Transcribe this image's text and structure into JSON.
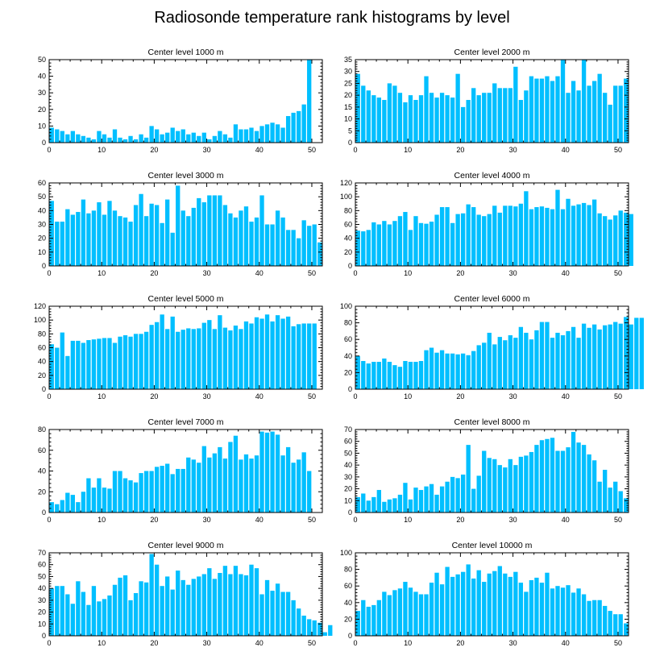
{
  "chart_data": {
    "title": "Radiosonde temperature rank histograms by level",
    "type": "bar",
    "panels": [
      {
        "title": "Center level 1000 m",
        "ylim": [
          0,
          50
        ],
        "yticks": [
          0,
          10,
          20,
          30,
          40,
          50
        ],
        "xticks": [
          0,
          10,
          20,
          30,
          40,
          50
        ],
        "values": [
          9,
          8,
          7,
          5,
          7,
          5,
          4,
          3,
          2,
          7,
          5,
          3,
          8,
          3,
          2,
          4,
          2,
          5,
          3,
          10,
          8,
          5,
          6,
          9,
          7,
          8,
          5,
          6,
          4,
          6,
          2,
          4,
          7,
          5,
          3,
          11,
          8,
          8,
          9,
          7,
          10,
          11,
          12,
          11,
          9,
          16,
          18,
          19,
          23,
          50
        ]
      },
      {
        "title": "Center level 2000 m",
        "ylim": [
          0,
          35
        ],
        "yticks": [
          0,
          5,
          10,
          15,
          20,
          25,
          30,
          35
        ],
        "xticks": [
          0,
          10,
          20,
          30,
          40,
          50
        ],
        "values": [
          29,
          24,
          22,
          20,
          19,
          18,
          25,
          24,
          21,
          17,
          20,
          18,
          20,
          28,
          21,
          19,
          21,
          20,
          19,
          29,
          15,
          18,
          23,
          20,
          21,
          21,
          25,
          23,
          23,
          23,
          32,
          18,
          22,
          28,
          27,
          27,
          28,
          26,
          28,
          35,
          21,
          26,
          22,
          35,
          24,
          26,
          29,
          21,
          16,
          24,
          24,
          27
        ]
      },
      {
        "title": "Center level 3000 m",
        "ylim": [
          0,
          60
        ],
        "yticks": [
          0,
          10,
          20,
          30,
          40,
          50,
          60
        ],
        "xticks": [
          0,
          10,
          20,
          30,
          40,
          50
        ],
        "values": [
          47,
          32,
          32,
          41,
          37,
          39,
          48,
          38,
          40,
          46,
          37,
          47,
          40,
          36,
          35,
          32,
          44,
          52,
          36,
          45,
          44,
          31,
          48,
          24,
          58,
          40,
          36,
          42,
          49,
          46,
          51,
          51,
          51,
          44,
          38,
          35,
          40,
          43,
          32,
          35,
          51,
          30,
          30,
          40,
          35,
          26,
          26,
          20,
          33,
          29,
          30,
          17
        ]
      },
      {
        "title": "Center level 4000 m",
        "ylim": [
          0,
          120
        ],
        "yticks": [
          0,
          20,
          40,
          60,
          80,
          100,
          120
        ],
        "xticks": [
          0,
          10,
          20,
          30,
          40,
          50
        ],
        "values": [
          51,
          50,
          52,
          63,
          60,
          65,
          60,
          65,
          72,
          78,
          52,
          72,
          62,
          61,
          64,
          74,
          85,
          85,
          62,
          75,
          76,
          89,
          85,
          74,
          72,
          75,
          87,
          77,
          87,
          87,
          86,
          90,
          108,
          82,
          85,
          86,
          84,
          82,
          110,
          82,
          97,
          87,
          89,
          91,
          88,
          96,
          76,
          72,
          67,
          73,
          80,
          77,
          75
        ]
      },
      {
        "title": "Center level 5000 m",
        "ylim": [
          0,
          120
        ],
        "yticks": [
          0,
          20,
          40,
          60,
          80,
          100,
          120
        ],
        "xticks": [
          0,
          10,
          20,
          30,
          40,
          50
        ],
        "values": [
          65,
          60,
          82,
          48,
          70,
          70,
          67,
          71,
          72,
          73,
          74,
          74,
          67,
          76,
          78,
          76,
          80,
          80,
          83,
          93,
          97,
          108,
          87,
          105,
          83,
          86,
          88,
          87,
          88,
          96,
          100,
          87,
          107,
          89,
          85,
          92,
          87,
          98,
          95,
          104,
          102,
          108,
          98,
          107,
          102,
          105,
          91,
          94,
          95,
          95,
          95
        ]
      },
      {
        "title": "Center level 6000 m",
        "ylim": [
          0,
          100
        ],
        "yticks": [
          0,
          20,
          40,
          60,
          80,
          100
        ],
        "xticks": [
          0,
          10,
          20,
          30,
          40,
          50
        ],
        "values": [
          40,
          34,
          31,
          33,
          33,
          37,
          33,
          29,
          27,
          34,
          33,
          33,
          34,
          47,
          50,
          44,
          47,
          43,
          43,
          42,
          43,
          41,
          46,
          53,
          56,
          68,
          54,
          63,
          59,
          65,
          62,
          75,
          68,
          60,
          71,
          81,
          81,
          62,
          68,
          65,
          70,
          75,
          62,
          79,
          74,
          78,
          72,
          77,
          78,
          81,
          79,
          87,
          78,
          86,
          86
        ]
      },
      {
        "title": "Center level 7000 m",
        "ylim": [
          0,
          80
        ],
        "yticks": [
          0,
          20,
          40,
          60,
          80
        ],
        "xticks": [
          0,
          10,
          20,
          30,
          40,
          50
        ],
        "values": [
          10,
          8,
          12,
          19,
          17,
          10,
          20,
          33,
          24,
          33,
          24,
          23,
          40,
          40,
          33,
          31,
          29,
          38,
          40,
          40,
          44,
          45,
          47,
          37,
          42,
          42,
          53,
          51,
          48,
          64,
          53,
          57,
          63,
          52,
          68,
          74,
          51,
          56,
          52,
          55,
          78,
          77,
          78,
          75,
          55,
          63,
          48,
          51,
          58,
          40
        ]
      },
      {
        "title": "Center level 8000 m",
        "ylim": [
          0,
          70
        ],
        "yticks": [
          0,
          10,
          20,
          30,
          40,
          50,
          60,
          70
        ],
        "xticks": [
          0,
          10,
          20,
          30,
          40,
          50
        ],
        "values": [
          13,
          16,
          10,
          13,
          19,
          9,
          11,
          12,
          15,
          25,
          11,
          21,
          19,
          22,
          24,
          15,
          22,
          26,
          30,
          29,
          32,
          57,
          20,
          31,
          52,
          46,
          45,
          40,
          38,
          45,
          40,
          47,
          48,
          51,
          57,
          61,
          62,
          63,
          52,
          52,
          55,
          68,
          59,
          57,
          49,
          44,
          26,
          36,
          21,
          26,
          18,
          12
        ]
      },
      {
        "title": "Center level 9000 m",
        "ylim": [
          0,
          70
        ],
        "yticks": [
          0,
          10,
          20,
          30,
          40,
          50,
          60,
          70
        ],
        "xticks": [
          0,
          10,
          20,
          30,
          40,
          50
        ],
        "values": [
          40,
          42,
          42,
          35,
          27,
          46,
          37,
          26,
          42,
          29,
          31,
          34,
          43,
          49,
          51,
          30,
          36,
          46,
          45,
          69,
          60,
          42,
          50,
          39,
          55,
          47,
          43,
          48,
          50,
          52,
          57,
          48,
          53,
          59,
          52,
          59,
          52,
          51,
          60,
          57,
          35,
          47,
          38,
          44,
          37,
          37,
          30,
          23,
          17,
          14,
          13,
          11,
          3,
          9
        ]
      },
      {
        "title": "Center level 10000 m",
        "ylim": [
          0,
          100
        ],
        "yticks": [
          0,
          20,
          40,
          60,
          80,
          100
        ],
        "xticks": [
          0,
          10,
          20,
          30,
          40,
          50
        ],
        "values": [
          30,
          43,
          35,
          37,
          43,
          53,
          49,
          55,
          57,
          65,
          58,
          53,
          50,
          50,
          64,
          76,
          62,
          83,
          71,
          74,
          77,
          86,
          69,
          79,
          65,
          75,
          78,
          84,
          75,
          71,
          77,
          64,
          53,
          67,
          70,
          64,
          76,
          57,
          60,
          58,
          61,
          52,
          57,
          50,
          42,
          43,
          43,
          36,
          30,
          26,
          26,
          15
        ]
      }
    ]
  }
}
